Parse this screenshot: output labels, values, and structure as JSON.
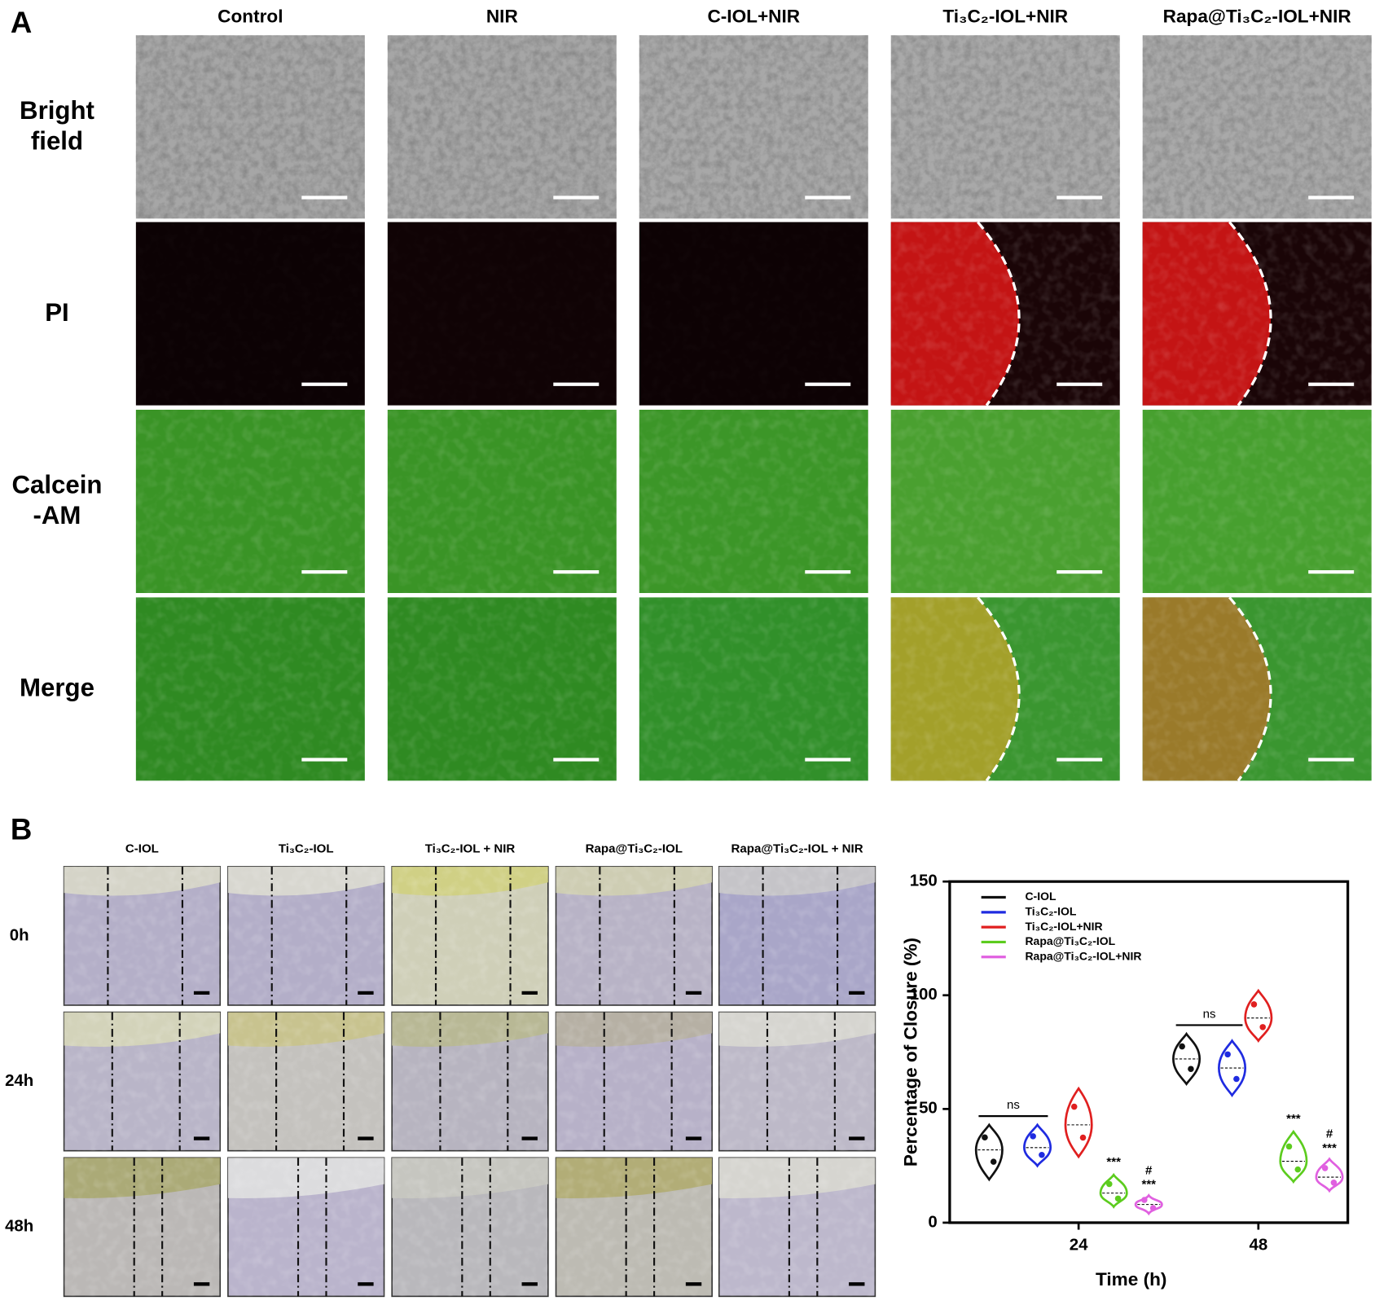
{
  "panel_a": {
    "label": "A",
    "columns": [
      "Control",
      "NIR",
      "C-IOL+NIR",
      "Ti₃C₂-IOL+NIR",
      "Rapa@Ti₃C₂-IOL+NIR"
    ],
    "rows": [
      [
        "Bright",
        "field"
      ],
      [
        "PI"
      ],
      [
        "Calcein",
        "-AM"
      ],
      [
        "Merge"
      ]
    ]
  },
  "panel_b": {
    "label": "B",
    "columns": [
      "C-IOL",
      "Ti₃C₂-IOL",
      "Ti₃C₂-IOL + NIR",
      "Rapa@Ti₃C₂-IOL",
      "Rapa@Ti₃C₂-IOL + NIR"
    ],
    "rows": [
      "0h",
      "24h",
      "48h"
    ]
  },
  "chart_data": {
    "type": "violin",
    "y_label": "Percentage of Closure (%)",
    "x_label": "Time (h)",
    "categories": [
      "24",
      "48"
    ],
    "ylim": [
      0,
      150
    ],
    "yticks": [
      0,
      50,
      100,
      150
    ],
    "legend": "upper left",
    "ns_labels": [
      "ns",
      "ns"
    ],
    "series": [
      {
        "name": "C-IOL",
        "color": "#111111",
        "values": [
          32,
          72
        ],
        "min": [
          19,
          61
        ],
        "max": [
          43,
          83
        ]
      },
      {
        "name": "Ti₃C₂-IOL",
        "color": "#1f2be0",
        "values": [
          33,
          68
        ],
        "min": [
          25,
          56
        ],
        "max": [
          43,
          80
        ]
      },
      {
        "name": "Ti₃C₂-IOL+NIR",
        "color": "#e01f1f",
        "values": [
          43,
          90
        ],
        "min": [
          29,
          80
        ],
        "max": [
          59,
          102
        ]
      },
      {
        "name": "Rapa@Ti₃C₂-IOL",
        "color": "#5ccc1e",
        "values": [
          13,
          27
        ],
        "min": [
          7,
          18
        ],
        "max": [
          21,
          40
        ],
        "significance": [
          "***",
          "***"
        ]
      },
      {
        "name": "Rapa@Ti₃C₂-IOL+NIR",
        "color": "#e060e0",
        "values": [
          8,
          20
        ],
        "min": [
          4,
          14
        ],
        "max": [
          12,
          28
        ],
        "significance": [
          "***",
          "***"
        ],
        "significance_2": [
          "#",
          "#"
        ]
      }
    ]
  }
}
